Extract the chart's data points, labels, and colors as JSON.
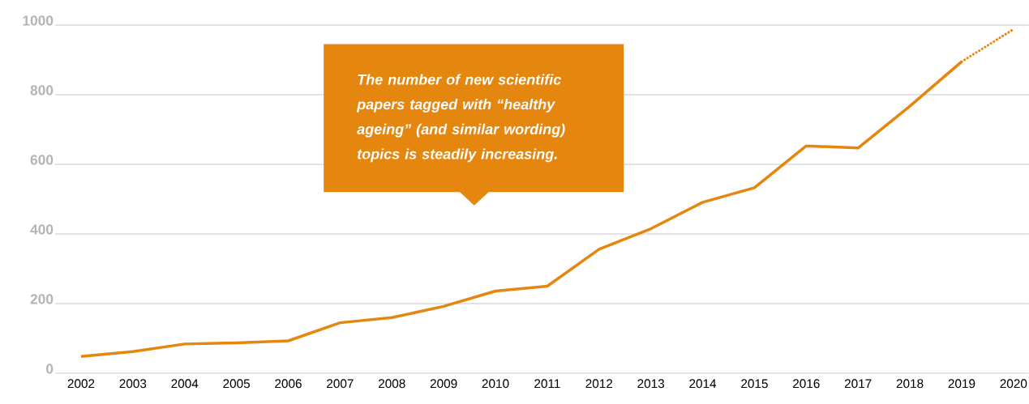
{
  "chart_data": {
    "type": "line",
    "categories": [
      "2002",
      "2003",
      "2004",
      "2005",
      "2006",
      "2007",
      "2008",
      "2009",
      "2010",
      "2011",
      "2012",
      "2013",
      "2014",
      "2015",
      "2016",
      "2017",
      "2018",
      "2019",
      "2020"
    ],
    "series": [
      {
        "color": "#e5860f",
        "line_style": "solid",
        "values": [
          48,
          62,
          84,
          87,
          93,
          145,
          160,
          192,
          236,
          250,
          356,
          415,
          491,
          533,
          653,
          647,
          767,
          895,
          null
        ]
      },
      {
        "color": "#e5860f",
        "line_style": "dotted",
        "values": [
          null,
          null,
          null,
          null,
          null,
          null,
          null,
          null,
          null,
          null,
          null,
          null,
          null,
          null,
          null,
          null,
          null,
          895,
          988
        ]
      }
    ],
    "ylim": [
      0,
      1000
    ],
    "yticks": [
      0,
      200,
      400,
      600,
      800,
      1000
    ],
    "grid": "y",
    "marker": "none",
    "annotations": [
      {
        "text": "The number of new scientific papers tagged with “healthy ageing” (and similar wording) topics is steadily increasing."
      }
    ]
  }
}
